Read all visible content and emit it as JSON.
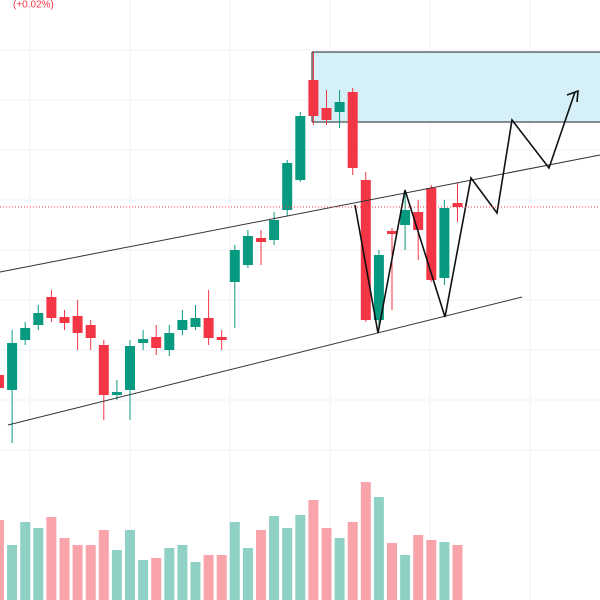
{
  "chart_data": {
    "type": "candlestick",
    "title": "(+0.02%)",
    "up_color": "#089981",
    "down_color": "#f23645",
    "volume_up_color": "rgba(8,153,129,0.45)",
    "volume_down_color": "rgba(242,54,69,0.45)",
    "open": [
      225,
      210,
      260,
      275,
      303,
      283,
      284,
      275,
      255,
      205,
      210,
      257,
      263,
      250,
      270,
      273,
      282,
      263,
      318,
      335,
      362,
      360,
      390,
      420,
      520,
      492,
      488,
      508,
      420,
      280,
      369,
      375,
      388,
      412,
      322,
      397
    ],
    "high": [
      240,
      270,
      278,
      295,
      310,
      290,
      300,
      280,
      260,
      220,
      260,
      270,
      275,
      275,
      290,
      295,
      310,
      270,
      355,
      370,
      370,
      388,
      440,
      488,
      548,
      510,
      510,
      512,
      428,
      350,
      372,
      410,
      400,
      415,
      400,
      417
    ],
    "low": [
      210,
      157,
      255,
      270,
      278,
      270,
      250,
      250,
      180,
      200,
      180,
      250,
      245,
      244,
      265,
      270,
      255,
      250,
      272,
      332,
      335,
      355,
      384,
      418,
      475,
      475,
      472,
      425,
      278,
      270,
      290,
      350,
      340,
      318,
      315,
      378
    ],
    "close": [
      212,
      257,
      272,
      287,
      282,
      277,
      267,
      262,
      205,
      208,
      254,
      261,
      252,
      267,
      280,
      282,
      262,
      260,
      350,
      364,
      358,
      380,
      437,
      484,
      484,
      480,
      498,
      432,
      280,
      345,
      366,
      390,
      370,
      320,
      392,
      393
    ],
    "volume": [
      80,
      55,
      78,
      72,
      83,
      62,
      55,
      55,
      70,
      50,
      70,
      40,
      42,
      52,
      55,
      38,
      45,
      45,
      78,
      52,
      70,
      84,
      72,
      85,
      100,
      72,
      62,
      78,
      118,
      103,
      57,
      45,
      65,
      60,
      58,
      55
    ],
    "ylim": [
      0,
      600
    ],
    "volume_lim": [
      0,
      600
    ]
  }
}
